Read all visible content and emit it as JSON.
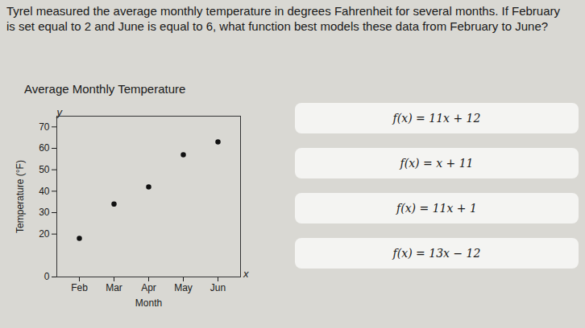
{
  "question": "Tyrel measured the average monthly temperature in degrees Fahrenheit for several months. If February is set equal to 2 and June is equal to 6, what function best models these data from February to June?",
  "chart_data": {
    "type": "scatter",
    "title": "Average Monthly Temperature",
    "categories": [
      "Feb",
      "Mar",
      "Apr",
      "May",
      "Jun"
    ],
    "values": [
      18,
      34,
      42,
      57,
      63
    ],
    "color": "#111111",
    "marker": "circle",
    "xlabel": "Month",
    "ylabel": "Temperature (°F)",
    "x_var": "x",
    "y_var": "y",
    "ylim": [
      0,
      75
    ],
    "yticks": [
      0,
      20,
      30,
      40,
      50,
      60,
      70
    ],
    "grid": false
  },
  "options": [
    "f(x) = 11x + 12",
    "f(x) = x + 11",
    "f(x) = 11x + 1",
    "f(x) = 13x − 12"
  ]
}
